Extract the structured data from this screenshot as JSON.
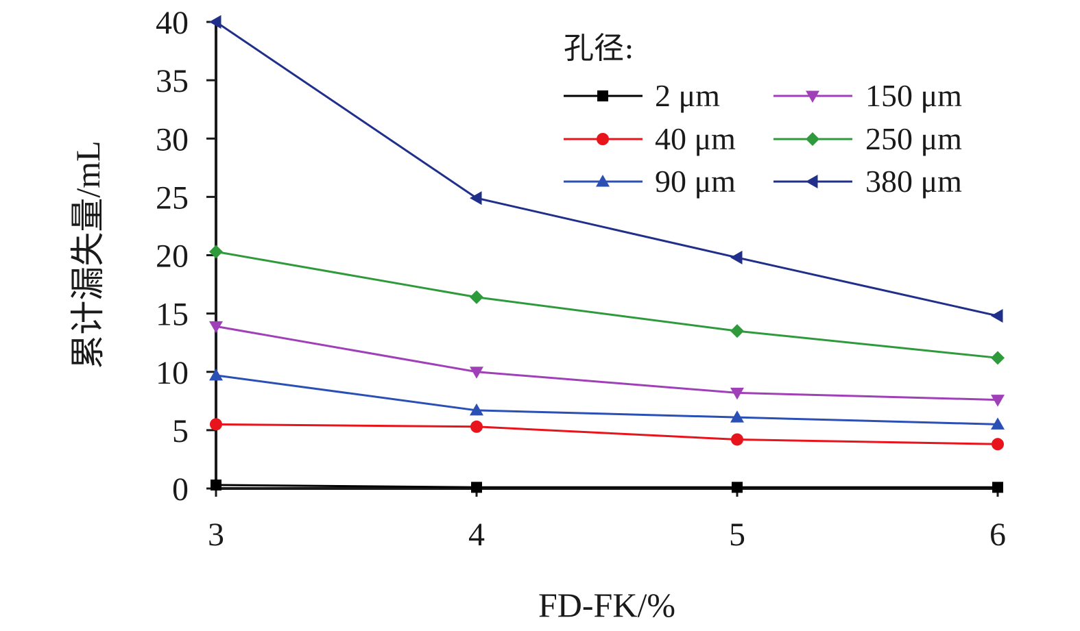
{
  "chart_data": {
    "type": "line",
    "title": "",
    "xlabel": "FD-FK/%",
    "ylabel": "累计漏失量/mL",
    "x": [
      3,
      4,
      5,
      6
    ],
    "xlim": [
      3,
      6
    ],
    "ylim": [
      0,
      40
    ],
    "x_ticks": [
      "3",
      "4",
      "5",
      "6"
    ],
    "y_ticks": [
      "0",
      "5",
      "10",
      "15",
      "20",
      "25",
      "30",
      "35",
      "40"
    ],
    "grid": false,
    "legend_title": "孔径:",
    "legend_position": "top-right",
    "series": [
      {
        "name": "2 μm",
        "values": [
          0.3,
          0.1,
          0.1,
          0.1
        ],
        "color": "#000000",
        "marker": "square"
      },
      {
        "name": "40 μm",
        "values": [
          5.5,
          5.3,
          4.2,
          3.8
        ],
        "color": "#e8141b",
        "marker": "circle"
      },
      {
        "name": "90 μm",
        "values": [
          9.7,
          6.7,
          6.1,
          5.5
        ],
        "color": "#2a4fb5",
        "marker": "triangle-up"
      },
      {
        "name": "150 μm",
        "values": [
          13.9,
          10.0,
          8.2,
          7.6
        ],
        "color": "#a040b8",
        "marker": "triangle-down"
      },
      {
        "name": "250 μm",
        "values": [
          20.3,
          16.4,
          13.5,
          11.2
        ],
        "color": "#2f9a3c",
        "marker": "diamond"
      },
      {
        "name": "380 μm",
        "values": [
          40.0,
          24.9,
          19.8,
          14.8
        ],
        "color": "#1f2f8a",
        "marker": "triangle-left"
      }
    ]
  }
}
